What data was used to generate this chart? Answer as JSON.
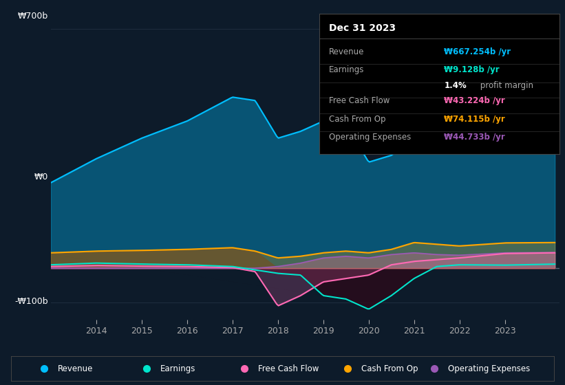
{
  "bg_color": "#0d1b2a",
  "plot_bg_color": "#0d1b2a",
  "revenue_color": "#00bfff",
  "earnings_color": "#00e5cc",
  "fcf_color": "#ff69b4",
  "cashfromop_color": "#ffa500",
  "opex_color": "#9b59b6",
  "ylim": [
    -150,
    750
  ],
  "yticks": [
    -100,
    0,
    700
  ],
  "ytick_labels": [
    "-₩100b",
    "₩0",
    "₩700b"
  ],
  "xticks": [
    2014,
    2015,
    2016,
    2017,
    2018,
    2019,
    2020,
    2021,
    2022,
    2023
  ],
  "grid_color": "#1e2d3d",
  "legend_items": [
    "Revenue",
    "Earnings",
    "Free Cash Flow",
    "Cash From Op",
    "Operating Expenses"
  ],
  "legend_colors": [
    "#00bfff",
    "#00e5cc",
    "#ff69b4",
    "#ffa500",
    "#9b59b6"
  ],
  "tooltip_title": "Dec 31 2023",
  "tooltip_bg": "#000000",
  "tooltip_border": "#333333",
  "revenue_label": "₩667.254b /yr",
  "earnings_label": "₩9.128b /yr",
  "profit_margin": "1.4% profit margin",
  "fcf_label": "₩43.224b /yr",
  "cashop_label": "₩74.115b /yr",
  "opex_label": "₩44.733b /yr"
}
